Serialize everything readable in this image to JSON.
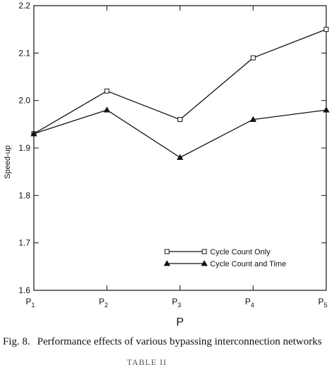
{
  "chart_data": {
    "type": "line",
    "categories": [
      "P1",
      "P2",
      "P3",
      "P4",
      "P5"
    ],
    "category_labels": [
      {
        "base": "P",
        "sub": "1"
      },
      {
        "base": "P",
        "sub": "2"
      },
      {
        "base": "P",
        "sub": "3"
      },
      {
        "base": "P",
        "sub": "4"
      },
      {
        "base": "P",
        "sub": "5"
      }
    ],
    "series": [
      {
        "name": "Cycle Count Only",
        "marker": "square",
        "values": [
          1.93,
          2.02,
          1.96,
          2.09,
          2.15
        ]
      },
      {
        "name": "Cycle Count and Time",
        "marker": "triangle",
        "values": [
          1.93,
          1.98,
          1.88,
          1.96,
          1.98
        ]
      }
    ],
    "xlabel": "P",
    "ylabel": "Speed-up",
    "ylim": [
      1.6,
      2.2
    ],
    "yticks": [
      1.6,
      1.7,
      1.8,
      1.9,
      2.0,
      2.1,
      2.2
    ],
    "ytick_labels": [
      "1.6",
      "1.7",
      "1.8",
      "1.9",
      "2.0",
      "2.1",
      "2.2"
    ],
    "grid": false,
    "legend_position": "bottom-right"
  },
  "caption": {
    "number": "Fig. 8.",
    "text": "Performance effects of various bypassing interconnection networks"
  },
  "cut_text": "TABLE II"
}
